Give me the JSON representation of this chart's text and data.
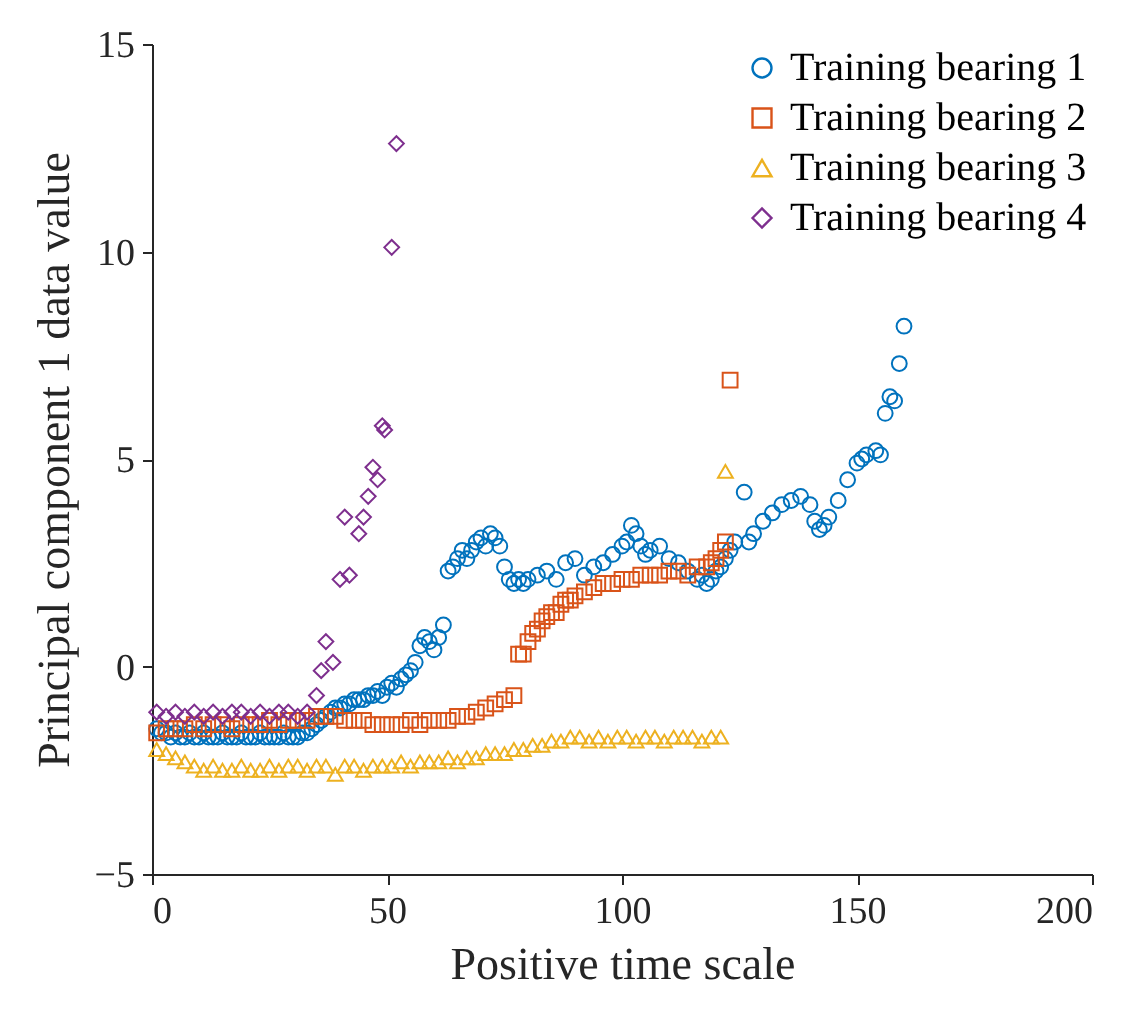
{
  "chart_data": {
    "type": "scatter",
    "xlabel": "Positive time scale",
    "ylabel": "Principal component 1 data value",
    "xlim": [
      0,
      200
    ],
    "xticks": [
      0,
      50,
      100,
      150,
      200
    ],
    "ylim": [
      -5,
      15
    ],
    "yticks": [
      -5,
      0,
      5,
      10,
      15
    ],
    "legend": "top right",
    "series": [
      {
        "name": "Training bearing 1",
        "color": "#0072bd",
        "marker": "circle",
        "x": [
          1,
          2,
          3,
          4,
          5,
          6,
          7,
          8,
          9,
          10,
          11,
          12,
          13,
          14,
          15,
          16,
          17,
          18,
          19,
          20,
          21,
          22,
          23,
          24,
          25,
          26,
          27,
          28,
          29,
          30,
          31,
          32,
          33,
          34,
          35,
          36,
          37,
          38,
          39,
          40,
          41,
          42,
          43,
          44,
          45,
          46,
          47,
          48,
          49,
          50,
          51,
          52,
          53,
          54,
          55,
          56,
          57,
          58,
          59,
          60,
          61,
          62,
          63,
          64,
          65,
          66,
          67,
          68,
          69,
          70,
          71,
          72,
          73,
          74,
          75,
          76,
          77,
          78,
          79,
          80,
          82,
          84,
          86,
          88,
          90,
          92,
          94,
          96,
          98,
          100,
          101,
          102,
          103,
          104,
          105,
          106,
          108,
          110,
          112,
          114,
          116,
          117,
          118,
          119,
          120,
          121,
          122,
          123,
          124,
          126,
          127,
          128,
          130,
          132,
          134,
          136,
          138,
          140,
          141,
          142,
          143,
          144,
          146,
          148,
          150,
          151,
          152,
          154,
          155,
          156,
          157,
          158,
          159,
          160
        ],
        "values": [
          -1.5,
          -1.6,
          -1.6,
          -1.7,
          -1.6,
          -1.7,
          -1.7,
          -1.6,
          -1.7,
          -1.7,
          -1.6,
          -1.7,
          -1.7,
          -1.7,
          -1.6,
          -1.7,
          -1.7,
          -1.7,
          -1.6,
          -1.7,
          -1.7,
          -1.7,
          -1.6,
          -1.7,
          -1.7,
          -1.7,
          -1.7,
          -1.6,
          -1.7,
          -1.7,
          -1.7,
          -1.6,
          -1.6,
          -1.5,
          -1.4,
          -1.3,
          -1.2,
          -1.1,
          -1.0,
          -1.0,
          -0.9,
          -0.9,
          -0.8,
          -0.8,
          -0.8,
          -0.7,
          -0.7,
          -0.6,
          -0.7,
          -0.5,
          -0.4,
          -0.5,
          -0.3,
          -0.2,
          -0.1,
          0.1,
          0.5,
          0.7,
          0.6,
          0.4,
          0.7,
          1.0,
          2.3,
          2.4,
          2.6,
          2.8,
          2.6,
          2.8,
          3.0,
          3.1,
          2.9,
          3.2,
          3.1,
          2.9,
          2.4,
          2.1,
          2.0,
          2.1,
          2.0,
          2.1,
          2.2,
          2.3,
          2.1,
          2.5,
          2.6,
          2.2,
          2.4,
          2.5,
          2.7,
          2.9,
          3.0,
          3.4,
          3.2,
          2.9,
          2.7,
          2.8,
          2.9,
          2.6,
          2.5,
          2.3,
          2.1,
          2.2,
          2.0,
          2.1,
          2.3,
          2.4,
          2.6,
          2.8,
          3.0,
          4.2,
          3.0,
          3.2,
          3.5,
          3.7,
          3.9,
          4.0,
          4.1,
          3.9,
          3.5,
          3.3,
          3.4,
          3.6,
          4.0,
          4.5,
          4.9,
          5.0,
          5.1,
          5.2,
          5.1,
          6.1,
          6.5,
          6.4,
          7.3,
          8.2
        ]
      },
      {
        "name": "Training bearing 2",
        "color": "#d95319",
        "marker": "square",
        "x": [
          1,
          3,
          5,
          7,
          9,
          11,
          13,
          15,
          17,
          19,
          21,
          23,
          25,
          27,
          29,
          31,
          33,
          35,
          37,
          39,
          41,
          43,
          45,
          47,
          49,
          51,
          53,
          55,
          57,
          59,
          61,
          63,
          65,
          67,
          69,
          71,
          73,
          75,
          77,
          78,
          79,
          80,
          81,
          82,
          83,
          84,
          85,
          86,
          87,
          88,
          89,
          90,
          92,
          94,
          96,
          98,
          100,
          102,
          104,
          106,
          108,
          110,
          112,
          114,
          116,
          118,
          119,
          120,
          121,
          122,
          123
        ],
        "values": [
          -1.6,
          -1.5,
          -1.5,
          -1.5,
          -1.4,
          -1.5,
          -1.4,
          -1.4,
          -1.5,
          -1.4,
          -1.4,
          -1.4,
          -1.3,
          -1.4,
          -1.3,
          -1.3,
          -1.3,
          -1.2,
          -1.2,
          -1.2,
          -1.3,
          -1.3,
          -1.3,
          -1.4,
          -1.4,
          -1.4,
          -1.4,
          -1.3,
          -1.4,
          -1.3,
          -1.3,
          -1.3,
          -1.2,
          -1.2,
          -1.1,
          -1.0,
          -0.9,
          -0.8,
          -0.7,
          0.3,
          0.3,
          0.6,
          0.8,
          0.9,
          1.1,
          1.2,
          1.3,
          1.3,
          1.5,
          1.6,
          1.6,
          1.7,
          1.8,
          1.9,
          2.0,
          2.0,
          2.1,
          2.1,
          2.2,
          2.2,
          2.2,
          2.3,
          2.3,
          2.2,
          2.4,
          2.4,
          2.5,
          2.6,
          2.8,
          3.0,
          6.9
        ]
      },
      {
        "name": "Training bearing 3",
        "color": "#edb120",
        "marker": "triangle",
        "x": [
          1,
          3,
          5,
          7,
          9,
          11,
          13,
          15,
          17,
          19,
          21,
          23,
          25,
          27,
          29,
          31,
          33,
          35,
          37,
          39,
          41,
          43,
          45,
          47,
          49,
          51,
          53,
          55,
          57,
          59,
          61,
          63,
          65,
          67,
          69,
          71,
          73,
          75,
          77,
          79,
          81,
          83,
          85,
          87,
          89,
          91,
          93,
          95,
          97,
          99,
          101,
          103,
          105,
          107,
          109,
          111,
          113,
          115,
          117,
          119,
          121,
          122
        ],
        "values": [
          -2.0,
          -2.1,
          -2.2,
          -2.3,
          -2.4,
          -2.5,
          -2.4,
          -2.5,
          -2.5,
          -2.4,
          -2.5,
          -2.5,
          -2.4,
          -2.5,
          -2.4,
          -2.4,
          -2.5,
          -2.4,
          -2.4,
          -2.6,
          -2.4,
          -2.4,
          -2.5,
          -2.4,
          -2.4,
          -2.4,
          -2.3,
          -2.4,
          -2.3,
          -2.3,
          -2.3,
          -2.2,
          -2.3,
          -2.2,
          -2.2,
          -2.1,
          -2.1,
          -2.1,
          -2.0,
          -2.0,
          -1.9,
          -1.9,
          -1.8,
          -1.8,
          -1.7,
          -1.7,
          -1.8,
          -1.7,
          -1.8,
          -1.7,
          -1.7,
          -1.8,
          -1.7,
          -1.7,
          -1.8,
          -1.7,
          -1.7,
          -1.7,
          -1.8,
          -1.7,
          -1.7,
          4.7
        ]
      },
      {
        "name": "Training bearing 4",
        "color": "#7e2f8e",
        "marker": "diamond",
        "x": [
          1,
          3,
          5,
          7,
          9,
          11,
          13,
          15,
          17,
          19,
          21,
          23,
          25,
          27,
          29,
          31,
          33,
          35,
          36,
          37,
          38.5,
          40,
          41,
          42,
          44,
          45,
          46,
          47,
          48,
          49,
          49.5,
          51,
          52
        ],
        "values": [
          -1.1,
          -1.2,
          -1.1,
          -1.2,
          -1.1,
          -1.2,
          -1.1,
          -1.2,
          -1.1,
          -1.1,
          -1.2,
          -1.1,
          -1.2,
          -1.1,
          -1.1,
          -1.2,
          -1.1,
          -0.7,
          -0.1,
          0.6,
          0.1,
          2.1,
          3.6,
          2.2,
          3.2,
          3.6,
          4.1,
          4.8,
          4.5,
          5.8,
          5.7,
          10.1,
          12.6
        ]
      }
    ]
  }
}
